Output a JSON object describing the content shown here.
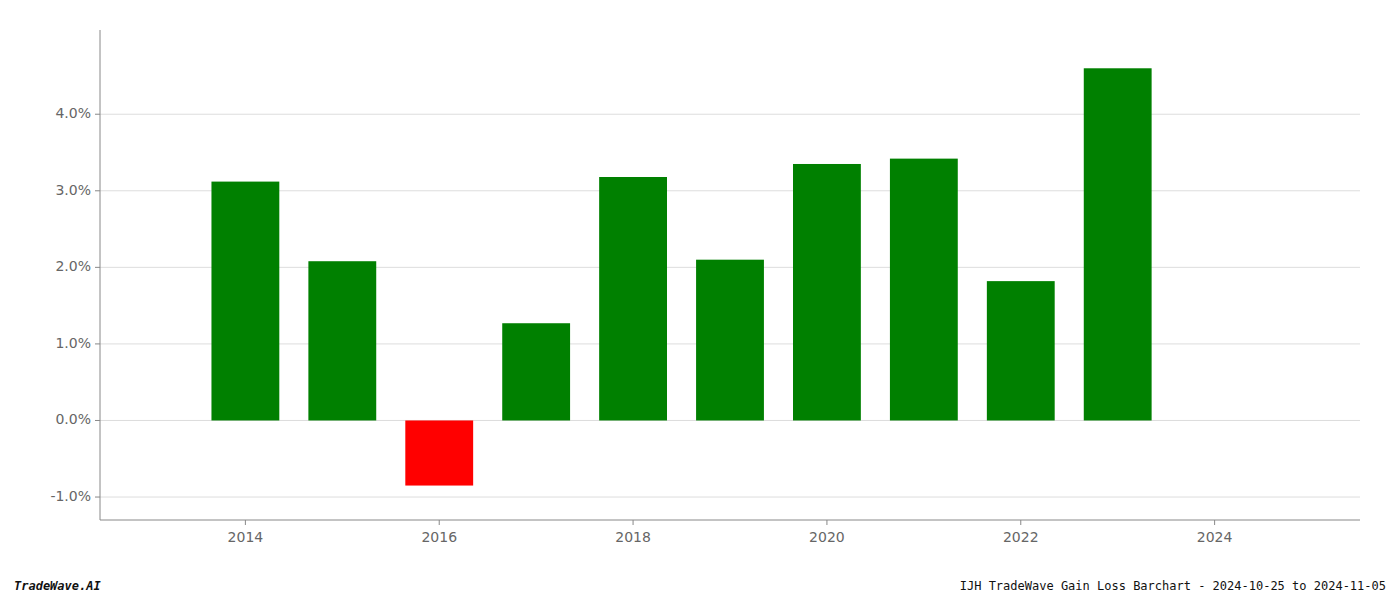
{
  "chart_data": {
    "type": "bar",
    "x": [
      2014,
      2015,
      2016,
      2017,
      2018,
      2019,
      2020,
      2021,
      2022,
      2023
    ],
    "values": [
      0.0312,
      0.0208,
      -0.0085,
      0.0127,
      0.0318,
      0.021,
      0.0335,
      0.0342,
      0.0182,
      0.046
    ],
    "colors": [
      "#008000",
      "#008000",
      "#ff0000",
      "#008000",
      "#008000",
      "#008000",
      "#008000",
      "#008000",
      "#008000",
      "#008000"
    ],
    "xlim": [
      2012.5,
      2025.5
    ],
    "xticks": [
      2014,
      2016,
      2018,
      2020,
      2022,
      2024
    ],
    "ylim": [
      -0.013,
      0.051
    ],
    "yticks": [
      {
        "value": -0.01,
        "label": "-1.0%"
      },
      {
        "value": 0.0,
        "label": "0.0%"
      },
      {
        "value": 0.01,
        "label": "1.0%"
      },
      {
        "value": 0.02,
        "label": "2.0%"
      },
      {
        "value": 0.03,
        "label": "3.0%"
      },
      {
        "value": 0.04,
        "label": "4.0%"
      }
    ],
    "grid": true,
    "annotations": [
      "TradeWave.AI",
      "IJH TradeWave Gain Loss Barchart - 2024-10-25 to 2024-11-05"
    ]
  }
}
